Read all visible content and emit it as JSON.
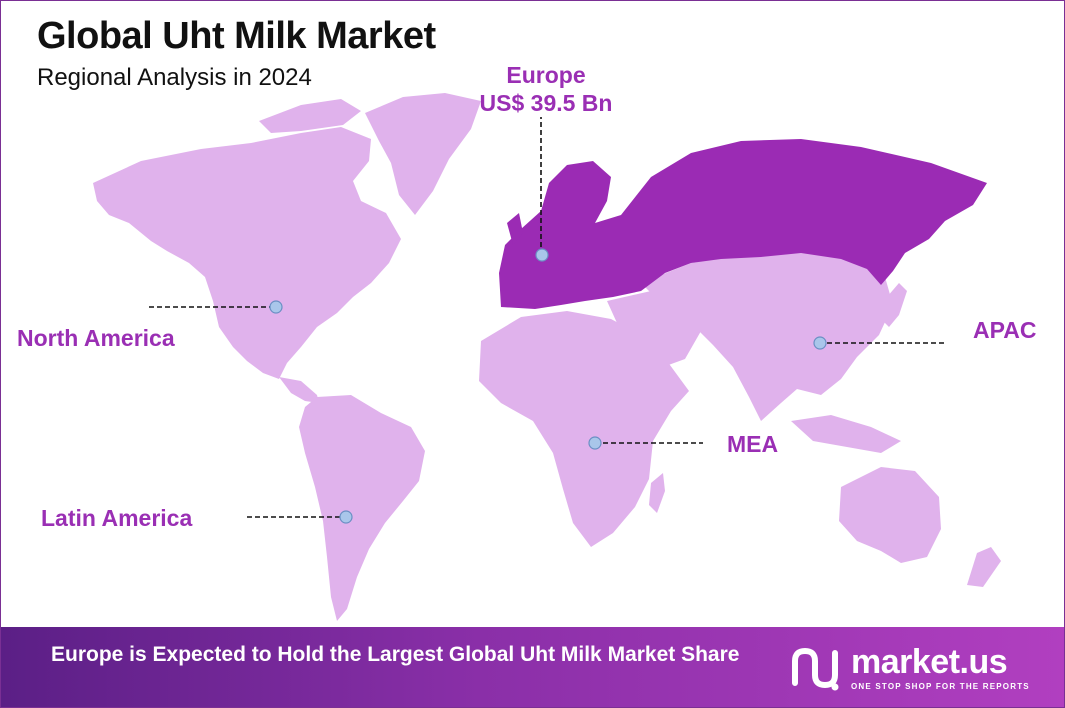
{
  "header": {
    "title": "Global Uht Milk Market",
    "subtitle": "Regional Analysis in 2024"
  },
  "regions": {
    "europe": {
      "name": "Europe",
      "value": "US$ 39.5 Bn",
      "highlighted": true
    },
    "north_america": {
      "name": "North America"
    },
    "apac": {
      "name": "APAC"
    },
    "mea": {
      "name": "MEA"
    },
    "latin_america": {
      "name": "Latin America"
    }
  },
  "colors": {
    "land": "#e0b2ec",
    "highlight": "#9b2bb4",
    "label": "#9a2fb4",
    "marker": "#a9c6ea"
  },
  "footer": {
    "message": "Europe is Expected to Hold the Largest Global Uht Milk Market Share"
  },
  "logo": {
    "name": "market.us",
    "tagline": "ONE STOP SHOP FOR THE REPORTS",
    "icon": "market-us-logo-icon"
  }
}
